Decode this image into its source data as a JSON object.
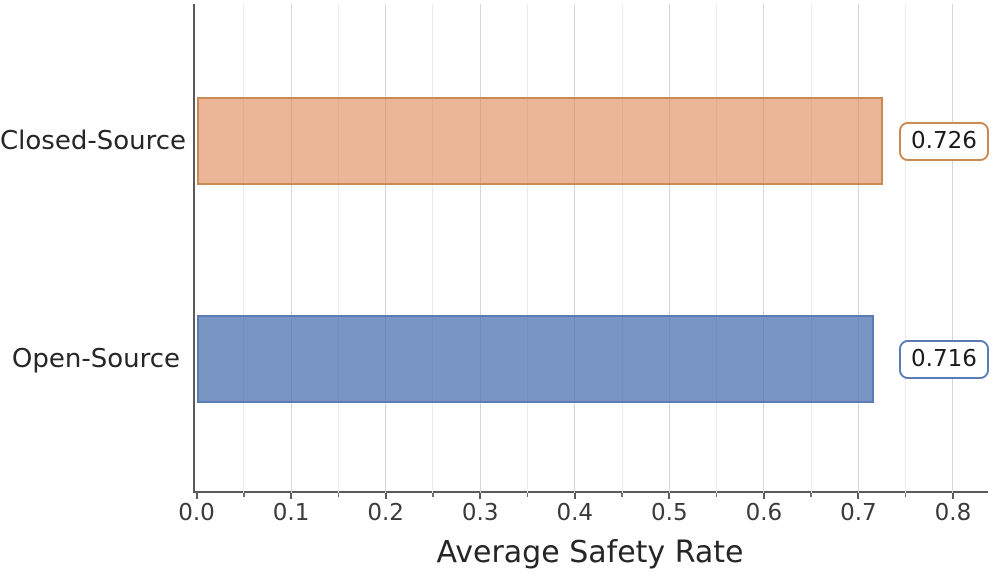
{
  "chart_data": {
    "type": "bar",
    "orientation": "horizontal",
    "title": "",
    "xlabel": "Average Safety Rate",
    "ylabel": "",
    "categories": [
      "Closed-Source",
      "Open-Source"
    ],
    "values": [
      0.726,
      0.716
    ],
    "value_labels": [
      "0.726",
      "0.716"
    ],
    "xlim": [
      0,
      0.838
    ],
    "x_major_ticks": [
      0.0,
      0.1,
      0.2,
      0.3,
      0.4,
      0.5,
      0.6,
      0.7,
      0.8
    ],
    "x_major_tick_labels": [
      "0.0",
      "0.1",
      "0.2",
      "0.3",
      "0.4",
      "0.5",
      "0.6",
      "0.7",
      "0.8"
    ],
    "x_minor_ticks": [
      0.05,
      0.15,
      0.25,
      0.35,
      0.45,
      0.55,
      0.65,
      0.75
    ],
    "grid": "vertical, light gray, major and minor",
    "legend": null,
    "series_colors": [
      {
        "name": "Closed-Source",
        "fill": "rgba(221,132,82,0.6)",
        "edge": "#c98b53"
      },
      {
        "name": "Open-Source",
        "fill": "rgba(76,114,176,0.75)",
        "edge": "#5a7bb3"
      }
    ],
    "text_color": "#262626",
    "spine_color": "#5a5a5a"
  }
}
